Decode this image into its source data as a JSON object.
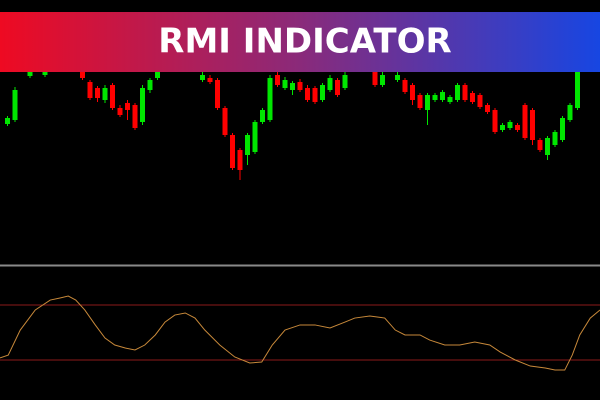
{
  "chart_data": [
    {
      "type": "candlestick",
      "title": "RMI INDICATOR",
      "up_color": "#00e600",
      "down_color": "#ff0000",
      "xlim": [
        0,
        80
      ],
      "ylim": [
        0,
        265
      ],
      "x": [
        1,
        2,
        4,
        6,
        11,
        12,
        13,
        14,
        15,
        16,
        17,
        18,
        19,
        20,
        21,
        27,
        28,
        29,
        30,
        31,
        32,
        33,
        34,
        35,
        36,
        37,
        38,
        39,
        40,
        41,
        42,
        43,
        44,
        45,
        46,
        50,
        51,
        53,
        54,
        55,
        56,
        57,
        58,
        59,
        60,
        61,
        62,
        63,
        64,
        65,
        66,
        67,
        68,
        69,
        70,
        71,
        72,
        73,
        74,
        75,
        76,
        77
      ],
      "open": [
        141,
        145,
        189,
        190,
        193,
        183,
        177,
        165,
        180,
        157,
        162,
        160,
        143,
        175,
        187,
        185,
        187,
        185,
        157,
        130,
        115,
        110,
        113,
        143,
        145,
        190,
        177,
        175,
        183,
        177,
        177,
        165,
        175,
        185,
        177,
        193,
        180,
        185,
        185,
        180,
        170,
        155,
        165,
        165,
        163,
        165,
        180,
        172,
        170,
        160,
        155,
        135,
        137,
        140,
        160,
        155,
        125,
        110,
        120,
        125,
        145,
        157
      ],
      "high": [
        149,
        178,
        195,
        195,
        195,
        185,
        179,
        180,
        182,
        160,
        165,
        162,
        180,
        187,
        195,
        193,
        190,
        187,
        159,
        132,
        117,
        132,
        145,
        157,
        190,
        193,
        188,
        184,
        186,
        180,
        179,
        182,
        190,
        187,
        193,
        195,
        193,
        193,
        187,
        182,
        172,
        172,
        172,
        175,
        170,
        182,
        182,
        174,
        172,
        162,
        157,
        142,
        145,
        142,
        162,
        157,
        127,
        129,
        135,
        149,
        162,
        195
      ],
      "low": [
        139,
        143,
        187,
        188,
        185,
        165,
        163,
        162,
        155,
        148,
        145,
        135,
        140,
        172,
        185,
        183,
        181,
        155,
        128,
        95,
        85,
        100,
        111,
        141,
        143,
        178,
        175,
        170,
        173,
        163,
        161,
        163,
        173,
        168,
        175,
        178,
        178,
        183,
        171,
        160,
        155,
        140,
        163,
        163,
        161,
        163,
        163,
        161,
        156,
        151,
        131,
        133,
        135,
        133,
        125,
        120,
        113,
        105,
        118,
        123,
        143,
        155
      ],
      "close": [
        147,
        175,
        193,
        193,
        187,
        167,
        167,
        177,
        157,
        150,
        155,
        137,
        177,
        185,
        193,
        190,
        183,
        157,
        130,
        97,
        95,
        130,
        143,
        155,
        187,
        180,
        185,
        182,
        175,
        165,
        163,
        180,
        187,
        170,
        190,
        180,
        190,
        190,
        173,
        165,
        157,
        170,
        170,
        173,
        168,
        180,
        165,
        163,
        158,
        153,
        133,
        140,
        143,
        135,
        127,
        125,
        115,
        127,
        133,
        147,
        160,
        193
      ]
    },
    {
      "type": "line",
      "color": "#c8893a",
      "level_color": "#8b1a1a",
      "levels": [
        70,
        30
      ],
      "xlim": [
        0,
        80
      ],
      "ylim": [
        0,
        100
      ],
      "x": [
        0,
        1.1,
        2.7,
        4.7,
        6.7,
        8,
        9.1,
        10.1,
        11.3,
        12.7,
        14,
        15.3,
        16.7,
        18,
        19.3,
        20.7,
        22,
        23.3,
        24.7,
        26,
        27.3,
        29.3,
        31.3,
        33.3,
        34.9,
        36.3,
        38,
        40,
        42,
        44,
        46,
        47.3,
        49.3,
        51.3,
        52.7,
        54,
        56,
        57.3,
        59.3,
        61.3,
        63.3,
        65.3,
        66.7,
        68.7,
        70.7,
        72.7,
        74,
        75.3,
        76.3,
        77.3,
        78.7,
        80
      ],
      "values": [
        31.5,
        33.6,
        51.8,
        66.4,
        73.6,
        75.1,
        76.5,
        73.6,
        66.4,
        55.5,
        46,
        40.9,
        38.7,
        37.3,
        40.9,
        48.2,
        57.6,
        62.7,
        64.2,
        60.5,
        51.8,
        40.9,
        32.2,
        27.8,
        28.5,
        40.9,
        51.8,
        55.5,
        55.5,
        53.3,
        57.6,
        60.5,
        62,
        60.5,
        51.8,
        48.2,
        48.2,
        44.5,
        40.9,
        40.9,
        43.1,
        40.9,
        35.8,
        30,
        25.6,
        24.2,
        22.7,
        22.7,
        33.6,
        48.2,
        60.5,
        66.4
      ]
    }
  ]
}
